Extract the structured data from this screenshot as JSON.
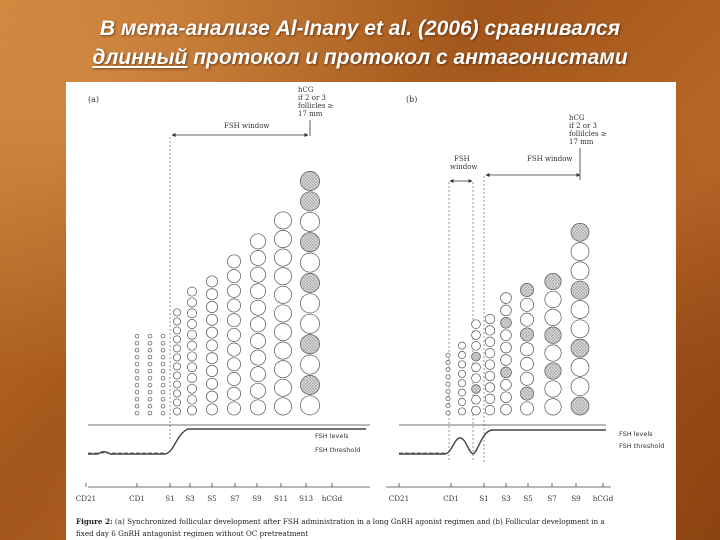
{
  "slide": {
    "title_line1": "В мета-анализе Al-Inany et al. (2006) сравнивался",
    "title_line2_underlined": "длинный",
    "title_line2_rest": " протокол и протокол с антагонистами"
  },
  "figure": {
    "panel_a": {
      "label": "(a)",
      "hcg_note": [
        "hCG",
        "if 2 or 3",
        "follicles ≥",
        "17 mm"
      ],
      "fsh_window": "FSH window",
      "legend_levels": "FSH levels",
      "legend_threshold": "FSH threshold",
      "axis_ticks": [
        "CD21",
        "CD1",
        "S1",
        "S3",
        "S5",
        "S7",
        "S9",
        "S11",
        "S13",
        "hCGd"
      ]
    },
    "panel_b": {
      "label": "(b)",
      "hcg_note": [
        "hCG",
        "if 2 or 3",
        "follilcles ≥",
        "17 mm"
      ],
      "fsh_window_short": [
        "FSH",
        "window"
      ],
      "fsh_window": "FSH window",
      "legend_levels": "FSH levels",
      "legend_threshold": "FSH threshold",
      "axis_ticks": [
        "CD21",
        "CD1",
        "S1",
        "S3",
        "S5",
        "S7",
        "S9",
        "hCGd"
      ]
    },
    "caption_label": "Figure 2:",
    "caption_line1": " (a) Synchronized follicular development after FSH administration in a long GnRH agonist regimen and (b) Follicular development in a",
    "caption_line2": "fixed day 6 GnRH antagonist regimen without OC pretreatment"
  }
}
